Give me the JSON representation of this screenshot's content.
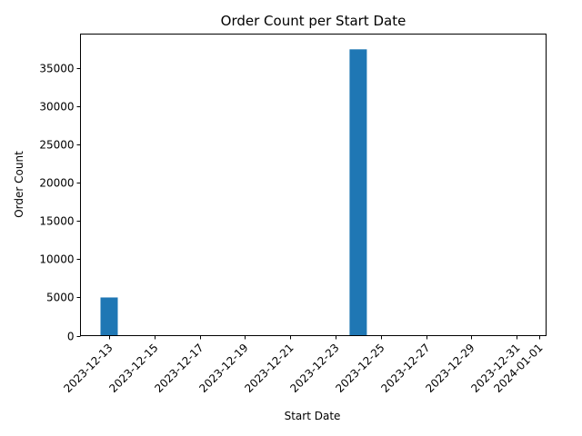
{
  "chart_data": {
    "type": "bar",
    "title": "Order Count per Start Date",
    "xlabel": "Start Date",
    "ylabel": "Order Count",
    "x_axis": {
      "type": "date",
      "range": [
        "2023-12-12",
        "2024-01-01"
      ],
      "ticks": [
        "2023-12-13",
        "2023-12-15",
        "2023-12-17",
        "2023-12-19",
        "2023-12-21",
        "2023-12-23",
        "2023-12-25",
        "2023-12-27",
        "2023-12-29",
        "2023-12-31",
        "2024-01-01"
      ]
    },
    "ylim": [
      0,
      39500
    ],
    "yticks": [
      0,
      5000,
      10000,
      15000,
      20000,
      25000,
      30000,
      35000
    ],
    "bars": [
      {
        "date": "2023-12-13",
        "value": 5000
      },
      {
        "date": "2023-12-24",
        "value": 37500
      }
    ],
    "bar_color": "#1f77b4",
    "grid": false,
    "legend": "none"
  }
}
